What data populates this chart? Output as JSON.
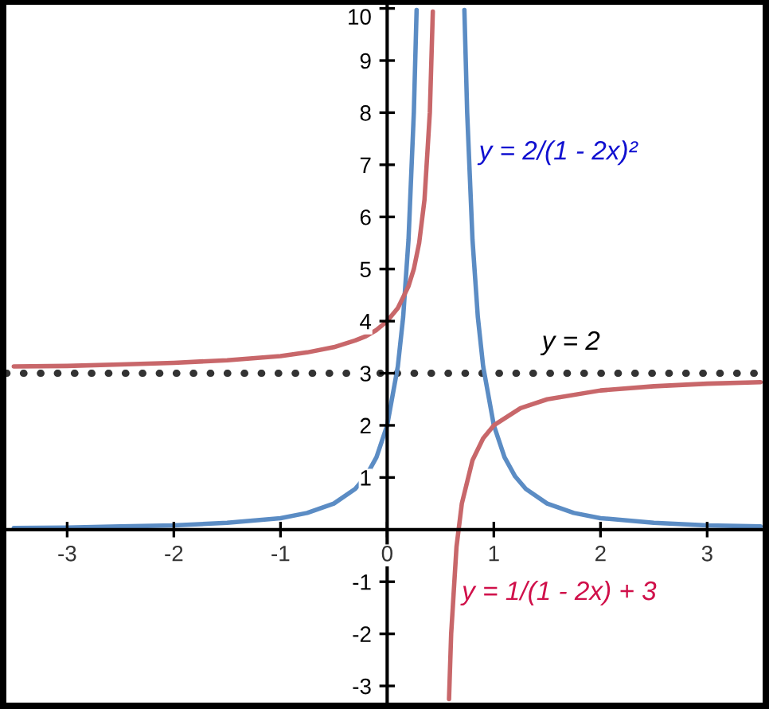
{
  "chart_data": {
    "type": "line",
    "xlim": [
      -3.57,
      3.52
    ],
    "ylim": [
      -3.32,
      10.07
    ],
    "xticks": [
      -3,
      -2,
      -1,
      0,
      1,
      2,
      3
    ],
    "yticks": [
      -3,
      -2,
      -1,
      1,
      2,
      3,
      4,
      5,
      6,
      7,
      8,
      9,
      10
    ],
    "grid": false,
    "legend": false,
    "marker": "none",
    "line_style": "solid",
    "series": [
      {
        "name": "y = 2/(1 - 2x)²",
        "color": "#5b8cc4",
        "x": [
          -3.5,
          -3,
          -2.5,
          -2,
          -1.5,
          -1,
          -0.75,
          -0.5,
          -0.3,
          -0.2,
          -0.1,
          0,
          0.1,
          0.15,
          0.2,
          0.25,
          0.276,
          null,
          0.724,
          0.75,
          0.8,
          0.85,
          0.9,
          1,
          1.1,
          1.2,
          1.3,
          1.5,
          1.75,
          2,
          2.5,
          3,
          3.5
        ],
        "values": [
          0.03,
          0.04,
          0.06,
          0.08,
          0.13,
          0.22,
          0.32,
          0.5,
          0.78,
          1.02,
          1.39,
          2,
          3.13,
          4.08,
          5.56,
          8,
          9.97,
          null,
          9.97,
          8,
          5.56,
          4.08,
          3.13,
          2,
          1.39,
          1.02,
          0.78,
          0.5,
          0.32,
          0.22,
          0.13,
          0.08,
          0.06
        ]
      },
      {
        "name": "y = 1/(1 - 2x) + 3",
        "color": "#c8676a",
        "x": [
          -3.5,
          -3,
          -2.5,
          -2,
          -1.5,
          -1,
          -0.75,
          -0.5,
          -0.3,
          -0.2,
          -0.1,
          0,
          0.1,
          0.2,
          0.25,
          0.3,
          0.35,
          0.4,
          0.428,
          null,
          0.58,
          0.6,
          0.65,
          0.7,
          0.8,
          0.9,
          1,
          1.25,
          1.5,
          2,
          2.5,
          3,
          3.5
        ],
        "values": [
          3.13,
          3.14,
          3.17,
          3.2,
          3.25,
          3.33,
          3.4,
          3.5,
          3.63,
          3.71,
          3.83,
          4,
          4.25,
          4.67,
          5,
          5.5,
          6.33,
          8,
          9.94,
          null,
          -3.25,
          -2,
          -0.33,
          0.5,
          1.33,
          1.75,
          2,
          2.33,
          2.5,
          2.67,
          2.75,
          2.8,
          2.83
        ]
      }
    ],
    "ref_lines": [
      {
        "axis": "y",
        "value": 3,
        "color": "#333333",
        "line_style": "dotted"
      }
    ],
    "annotations": [
      "y = 2"
    ]
  }
}
